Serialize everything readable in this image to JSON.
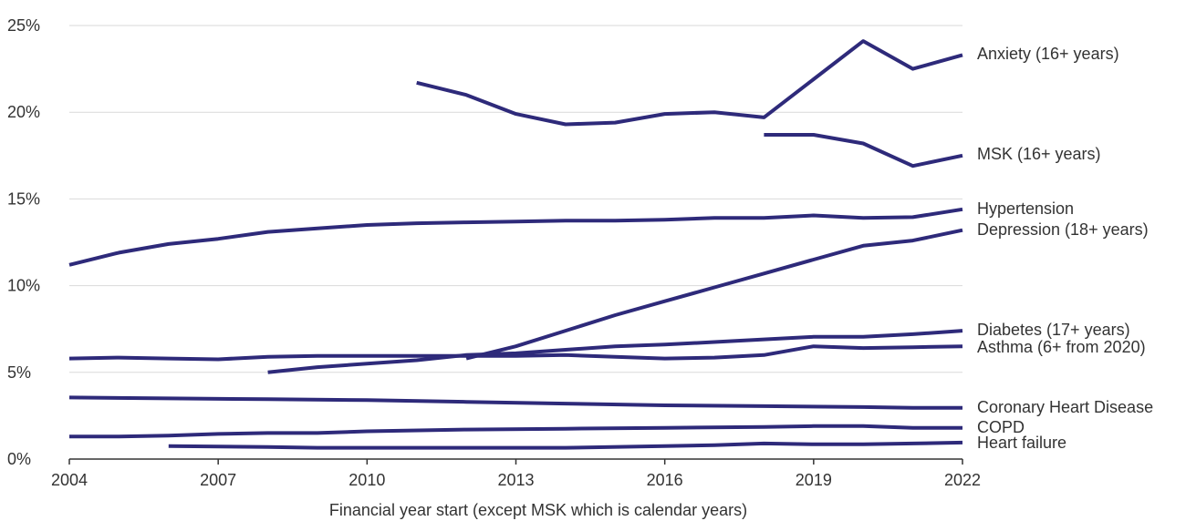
{
  "chart_data": {
    "type": "line",
    "xlabel": "Financial year start (except MSK which is calendar years)",
    "ylabel": "",
    "xlim": [
      2004,
      2022
    ],
    "ylim": [
      0,
      25
    ],
    "x_ticks": [
      "2004",
      "2007",
      "2010",
      "2013",
      "2016",
      "2019",
      "2022"
    ],
    "y_ticks": [
      "0%",
      "5%",
      "10%",
      "15%",
      "20%",
      "25%"
    ],
    "grid": true,
    "line_color": "#2e2a7a",
    "series": [
      {
        "name": "Anxiety (16+ years)",
        "x": [
          2011,
          2012,
          2013,
          2014,
          2015,
          2016,
          2017,
          2018,
          2019,
          2020,
          2021,
          2022
        ],
        "values": [
          21.7,
          21.0,
          19.9,
          19.3,
          19.4,
          19.9,
          20.0,
          19.7,
          21.9,
          24.1,
          22.5,
          23.3
        ]
      },
      {
        "name": "MSK (16+ years)",
        "x": [
          2018,
          2019,
          2020,
          2021,
          2022
        ],
        "values": [
          18.7,
          18.7,
          18.2,
          16.9,
          17.5
        ]
      },
      {
        "name": "Hypertension",
        "x": [
          2004,
          2005,
          2006,
          2007,
          2008,
          2009,
          2010,
          2011,
          2012,
          2013,
          2014,
          2015,
          2016,
          2017,
          2018,
          2019,
          2020,
          2021,
          2022
        ],
        "values": [
          11.2,
          11.9,
          12.4,
          12.7,
          13.1,
          13.3,
          13.5,
          13.6,
          13.65,
          13.7,
          13.75,
          13.75,
          13.8,
          13.9,
          13.9,
          14.05,
          13.9,
          13.95,
          14.4
        ]
      },
      {
        "name": "Depression (18+ years)",
        "x": [
          2012,
          2013,
          2014,
          2015,
          2016,
          2017,
          2018,
          2019,
          2020,
          2021,
          2022
        ],
        "values": [
          5.8,
          6.5,
          7.4,
          8.3,
          9.1,
          9.9,
          10.7,
          11.5,
          12.3,
          12.6,
          13.2
        ]
      },
      {
        "name": "Diabetes (17+ years)",
        "x": [
          2008,
          2009,
          2010,
          2011,
          2012,
          2013,
          2014,
          2015,
          2016,
          2017,
          2018,
          2019,
          2020,
          2021,
          2022
        ],
        "values": [
          5.0,
          5.3,
          5.5,
          5.7,
          6.0,
          6.1,
          6.3,
          6.5,
          6.6,
          6.75,
          6.9,
          7.05,
          7.05,
          7.2,
          7.4
        ]
      },
      {
        "name": "Asthma (6+ from 2020)",
        "x": [
          2004,
          2005,
          2006,
          2007,
          2008,
          2009,
          2010,
          2011,
          2012,
          2013,
          2014,
          2015,
          2016,
          2017,
          2018,
          2019,
          2020,
          2021,
          2022
        ],
        "values": [
          5.8,
          5.85,
          5.8,
          5.75,
          5.9,
          5.95,
          5.95,
          5.95,
          5.95,
          5.95,
          6.0,
          5.9,
          5.8,
          5.85,
          6.0,
          6.5,
          6.4,
          6.45,
          6.5
        ]
      },
      {
        "name": "Coronary Heart Disease",
        "x": [
          2004,
          2006,
          2008,
          2010,
          2012,
          2014,
          2016,
          2018,
          2020,
          2021,
          2022
        ],
        "values": [
          3.55,
          3.5,
          3.45,
          3.4,
          3.3,
          3.2,
          3.1,
          3.05,
          3.0,
          2.95,
          2.95
        ]
      },
      {
        "name": "COPD",
        "x": [
          2004,
          2005,
          2006,
          2007,
          2008,
          2009,
          2010,
          2012,
          2014,
          2016,
          2018,
          2019,
          2020,
          2021,
          2022
        ],
        "values": [
          1.3,
          1.3,
          1.35,
          1.45,
          1.5,
          1.5,
          1.6,
          1.7,
          1.75,
          1.8,
          1.85,
          1.9,
          1.9,
          1.8,
          1.8
        ]
      },
      {
        "name": "Heart failure",
        "x": [
          2006,
          2008,
          2009,
          2010,
          2012,
          2014,
          2016,
          2017,
          2018,
          2019,
          2020,
          2021,
          2022
        ],
        "values": [
          0.75,
          0.7,
          0.65,
          0.65,
          0.65,
          0.65,
          0.75,
          0.8,
          0.9,
          0.85,
          0.85,
          0.9,
          0.95
        ]
      }
    ]
  }
}
